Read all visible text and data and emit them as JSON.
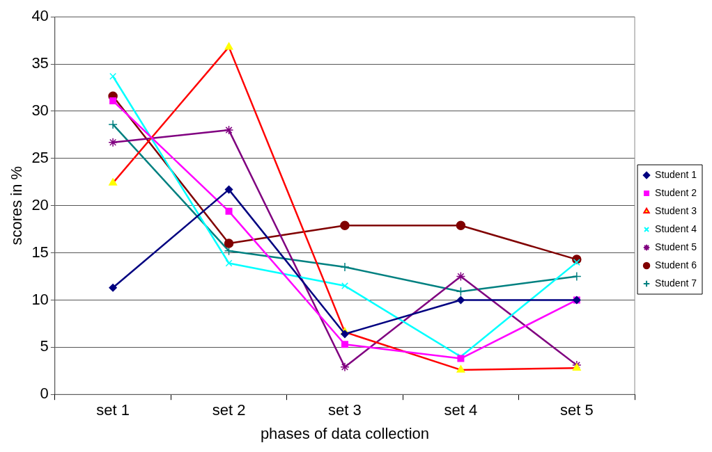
{
  "chart_data": {
    "type": "line",
    "xlabel": "phases of data collection",
    "ylabel": "scores in %",
    "categories": [
      "set 1",
      "set 2",
      "set 3",
      "set 4",
      "set 5"
    ],
    "series": [
      {
        "name": "Student 1",
        "color": "#000080",
        "marker": "diamond",
        "values": [
          11.3,
          21.7,
          6.4,
          10,
          10
        ]
      },
      {
        "name": "Student 2",
        "color": "#ff00ff",
        "marker": "square",
        "values": [
          31.1,
          19.4,
          5.3,
          3.8,
          10
        ]
      },
      {
        "name": "Student 3",
        "color": "#ff0000",
        "colors": [
          "#ffff00",
          "#ffff00",
          "#ffff00",
          "#ffff00",
          "#ffff00"
        ],
        "marker": "triangle",
        "values": [
          22.4,
          36.8,
          6.6,
          2.6,
          2.8
        ]
      },
      {
        "name": "Student 4",
        "color": "#00ffff",
        "marker": "x",
        "values": [
          33.7,
          13.9,
          11.5,
          4.0,
          14.0
        ]
      },
      {
        "name": "Student 5",
        "color": "#800080",
        "marker": "cross",
        "values": [
          26.7,
          28,
          2.9,
          12.5,
          3.1
        ]
      },
      {
        "name": "Student 6",
        "color": "#800000",
        "marker": "circle",
        "values": [
          31.6,
          16,
          17.9,
          17.9,
          14.3
        ]
      },
      {
        "name": "Student 7",
        "color": "#008080",
        "marker": "plus",
        "values": [
          28.6,
          15.2,
          13.5,
          10.9,
          12.5
        ]
      }
    ],
    "ylim": [
      0,
      40
    ],
    "yticks": [
      0,
      5,
      10,
      15,
      20,
      25,
      30,
      35,
      40
    ],
    "grid": "y",
    "legend": "right",
    "line_style": "solid"
  }
}
